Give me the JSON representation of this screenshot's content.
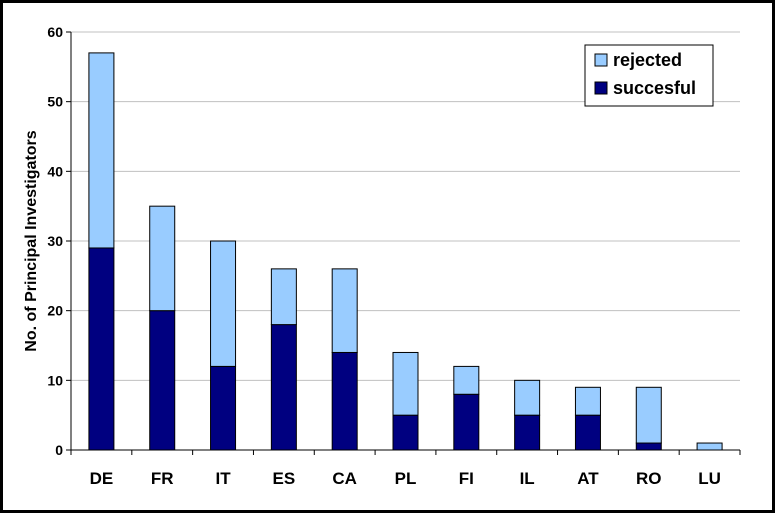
{
  "chart_data": {
    "type": "bar",
    "stacked": true,
    "title": "",
    "xlabel": "",
    "ylabel": "No. of Principal Investigators",
    "ylim": [
      0,
      60
    ],
    "yticks": [
      0,
      10,
      20,
      30,
      40,
      50,
      60
    ],
    "grid": true,
    "legend_position": "top-right",
    "categories": [
      "DE",
      "FR",
      "IT",
      "ES",
      "CA",
      "PL",
      "FI",
      "IL",
      "AT",
      "RO",
      "LU"
    ],
    "series": [
      {
        "name": "succesful",
        "color": "#000080",
        "values": [
          29,
          20,
          12,
          18,
          14,
          5,
          8,
          5,
          5,
          1,
          0
        ]
      },
      {
        "name": "rejected",
        "color": "#99CCFF",
        "values": [
          28,
          15,
          18,
          8,
          12,
          9,
          4,
          5,
          4,
          8,
          1
        ]
      }
    ],
    "legend_order": [
      "rejected",
      "succesful"
    ]
  }
}
